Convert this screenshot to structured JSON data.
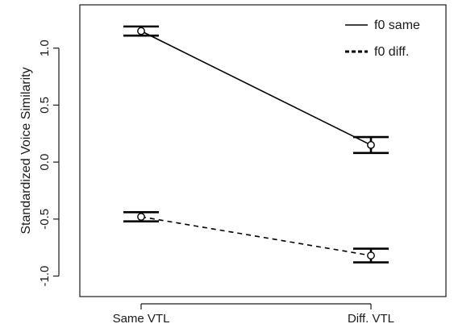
{
  "chart_data": {
    "type": "line",
    "title": "",
    "xlabel": "",
    "ylabel": "Standardized Voice Similarity",
    "categories": [
      "Same VTL",
      "Diff. VTL"
    ],
    "ylim": [
      -1.18,
      1.38
    ],
    "y_ticks": [
      -1.0,
      -0.5,
      0.0,
      0.5,
      1.0
    ],
    "y_tick_labels": [
      "-1.0",
      "-0.5",
      "0.0",
      "0.5",
      "1.0"
    ],
    "grid": false,
    "legend_position": "top-right",
    "series": [
      {
        "name": "f0 same",
        "line_style": "solid",
        "values": [
          1.15,
          0.15
        ],
        "error_low": [
          1.11,
          0.08
        ],
        "error_high": [
          1.19,
          0.22
        ]
      },
      {
        "name": "f0 diff.",
        "line_style": "dashed",
        "values": [
          -0.48,
          -0.82
        ],
        "error_low": [
          -0.52,
          -0.88
        ],
        "error_high": [
          -0.44,
          -0.76
        ]
      }
    ]
  }
}
